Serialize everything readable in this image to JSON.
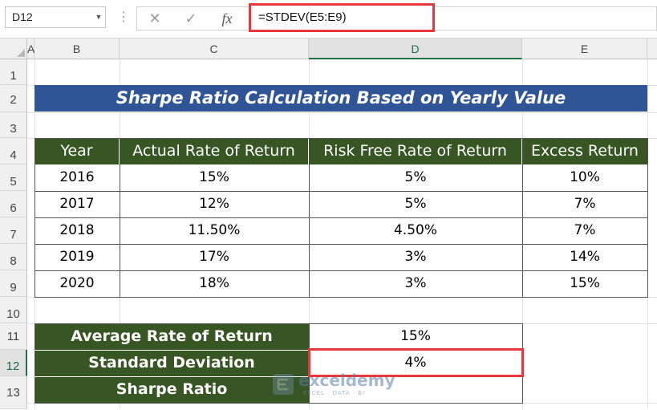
{
  "formula_bar": {
    "name_box": "D12",
    "formula": "=STDEV(E5:E9)",
    "cancel_icon": "close-x-icon",
    "enter_icon": "checkmark-icon",
    "fx_label": "fx"
  },
  "columns": [
    "A",
    "B",
    "C",
    "D",
    "E"
  ],
  "rows": [
    "1",
    "2",
    "3",
    "4",
    "5",
    "6",
    "7",
    "8",
    "9",
    "10",
    "11",
    "12",
    "13"
  ],
  "selected": {
    "column": "D",
    "row": "12"
  },
  "title": "Sharpe Ratio Calculation Based on Yearly Value",
  "table": {
    "headers": [
      "Year",
      "Actual Rate of Return",
      "Risk Free Rate of Return",
      "Excess Return"
    ],
    "rows": [
      [
        "2016",
        "15%",
        "5%",
        "10%"
      ],
      [
        "2017",
        "12%",
        "5%",
        "7%"
      ],
      [
        "2018",
        "11.50%",
        "4.50%",
        "7%"
      ],
      [
        "2019",
        "17%",
        "3%",
        "14%"
      ],
      [
        "2020",
        "18%",
        "3%",
        "15%"
      ]
    ]
  },
  "summary": [
    {
      "label": "Average Rate of Return",
      "value": "15%"
    },
    {
      "label": "Standard Deviation",
      "value": "4%"
    },
    {
      "label": "Sharpe Ratio",
      "value": ""
    }
  ],
  "watermark": {
    "name": "exceldemy",
    "tagline": "EXCEL · DATA · BI"
  },
  "colors": {
    "title_fill": "#2f5597",
    "header_fill": "#375623",
    "highlight": "#e8383d",
    "selection": "#217346"
  }
}
